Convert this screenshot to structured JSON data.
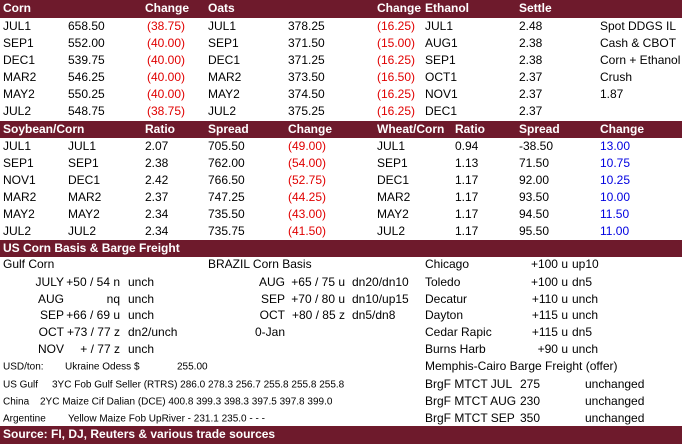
{
  "corn_oats_ethanol": {
    "header": [
      "Corn",
      "Change",
      "Oats",
      "Change",
      "Ethanol",
      "Settle"
    ],
    "rows": [
      [
        "JUL1",
        "658.50",
        "(38.75)",
        "JUL1",
        "378.25",
        "(16.25)",
        "JUL1",
        "2.48",
        "Spot DDGS IL"
      ],
      [
        "SEP1",
        "552.00",
        "(40.00)",
        "SEP1",
        "371.50",
        "(15.00)",
        "AUG1",
        "2.38",
        "Cash & CBOT"
      ],
      [
        "DEC1",
        "539.75",
        "(40.00)",
        "DEC1",
        "371.25",
        "(16.25)",
        "SEP1",
        "2.38",
        "Corn + Ethanol"
      ],
      [
        "MAR2",
        "546.25",
        "(40.00)",
        "MAR2",
        "373.50",
        "(16.50)",
        "OCT1",
        "2.37",
        "Crush"
      ],
      [
        "MAY2",
        "550.25",
        "(40.00)",
        "MAY2",
        "374.50",
        "(16.25)",
        "NOV1",
        "2.37",
        "1.87"
      ],
      [
        "JUL2",
        "548.75",
        "(38.75)",
        "JUL2",
        "375.25",
        "(16.25)",
        "DEC1",
        "2.37"
      ]
    ]
  },
  "spreads": {
    "header": [
      "Soybean/Corn",
      "Ratio",
      "Spread",
      "Change",
      "Wheat/Corn",
      "Ratio",
      "Spread",
      "Change"
    ],
    "rows": [
      [
        "JUL1",
        "JUL1",
        "2.07",
        "705.50",
        "(49.00)",
        "JUL1",
        "0.94",
        "-38.50",
        "13.00"
      ],
      [
        "SEP1",
        "SEP1",
        "2.38",
        "762.00",
        "(54.00)",
        "SEP1",
        "1.13",
        "71.50",
        "10.75"
      ],
      [
        "NOV1",
        "DEC1",
        "2.42",
        "766.50",
        "(52.75)",
        "DEC1",
        "1.17",
        "92.00",
        "10.25"
      ],
      [
        "MAR2",
        "MAR2",
        "2.37",
        "747.25",
        "(44.25)",
        "MAR2",
        "1.17",
        "93.50",
        "10.00"
      ],
      [
        "MAY2",
        "MAY2",
        "2.34",
        "735.50",
        "(43.00)",
        "MAY2",
        "1.17",
        "94.50",
        "11.50"
      ],
      [
        "JUL2",
        "JUL2",
        "2.34",
        "735.75",
        "(41.50)",
        "JUL2",
        "1.17",
        "95.50",
        "11.00"
      ]
    ]
  },
  "basis": {
    "title": "US Corn Basis & Barge Freight",
    "gulf": {
      "title": "Gulf Corn",
      "rows": [
        [
          "JULY",
          "+50 / 54 n",
          "unch"
        ],
        [
          "AUG",
          "nq",
          "unch"
        ],
        [
          "SEP",
          "+66 / 69 u",
          "unch"
        ],
        [
          "OCT",
          "+73 / 77 z",
          "dn2/unch"
        ],
        [
          "NOV",
          "+ / 77 z",
          "unch"
        ]
      ]
    },
    "brazil": {
      "title": "BRAZIL Corn Basis",
      "rows": [
        [
          "AUG",
          "+65 / 75 u",
          "dn20/dn10"
        ],
        [
          "SEP",
          "+70 / 80 u",
          "dn10/up15"
        ],
        [
          "OCT",
          "+80 / 85 z",
          "dn5/dn8"
        ],
        [
          "0-Jan"
        ]
      ]
    },
    "interior": {
      "rows": [
        [
          "Chicago",
          "+100 u",
          "up10"
        ],
        [
          "Toledo",
          "+100 u",
          "dn5"
        ],
        [
          "Decatur",
          "+110 u",
          "unch"
        ],
        [
          "Dayton",
          "+115 u",
          "unch"
        ],
        [
          "Cedar Rapic",
          "+115 u",
          "dn5"
        ],
        [
          "Burns Harb",
          "+90 u",
          "unch"
        ]
      ]
    },
    "usd_ton": [
      "USD/ton:",
      "Ukraine Odess",
      "$",
      "255.00"
    ],
    "fob": [
      [
        "US Gulf",
        "3YC Fob Gulf Seller (RTRS) 286.0 278.3 256.7 255.8 255.8 255.8"
      ],
      [
        "China",
        "2YC Maize Cif Dalian (DCE) 400.8 399.3 398.3 397.5 397.8 399.0"
      ],
      [
        "Argentine",
        "Yellow Maize Fob UpRiver  -  231.1 235.0   -     -     -"
      ]
    ],
    "barge": {
      "title": "Memphis-Cairo Barge Freight (offer)",
      "rows": [
        [
          "BrgF MTCT JUL",
          "275",
          "unchanged"
        ],
        [
          "BrgF MTCT AUG",
          "230",
          "unchanged"
        ],
        [
          "BrgF MTCT SEP",
          "350",
          "unchanged"
        ]
      ]
    }
  },
  "footer": "Source: FI, DJ, Reuters & various trade sources"
}
